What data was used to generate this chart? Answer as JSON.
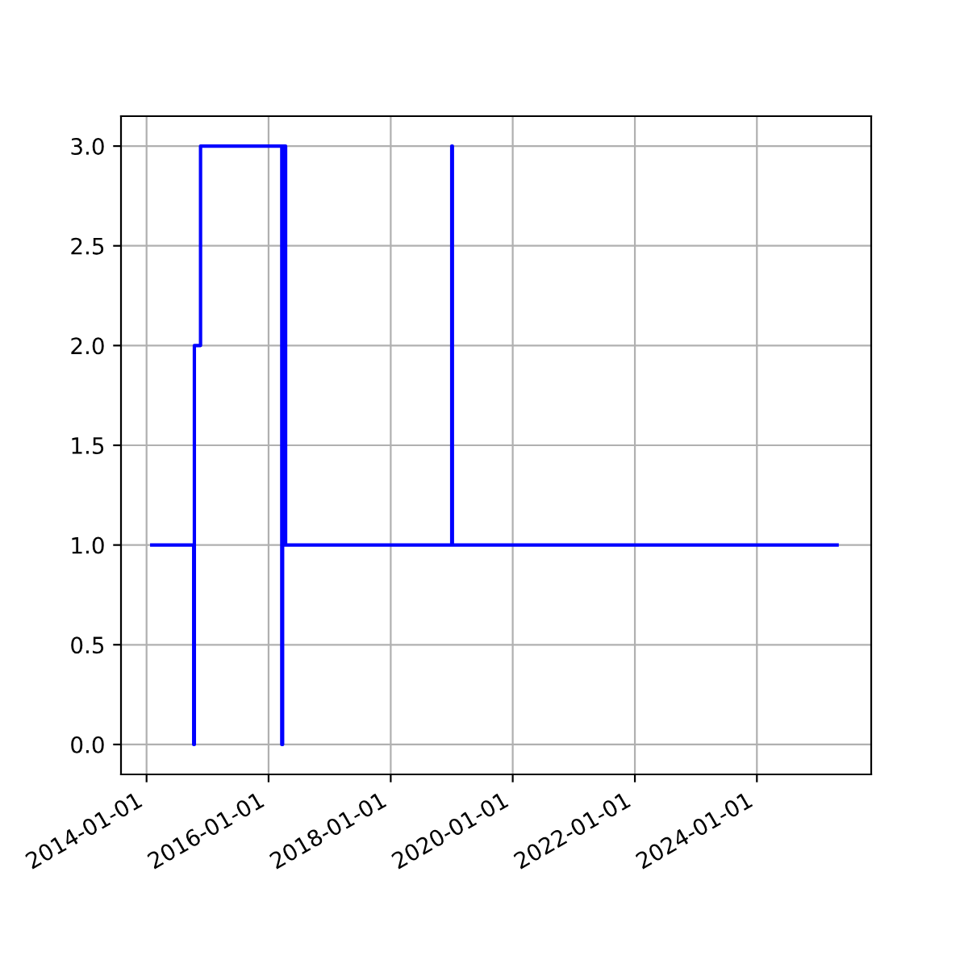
{
  "chart_data": {
    "type": "step",
    "grid": true,
    "legend": false,
    "x": [
      "2014-02-01",
      "2014-10-10",
      "2014-10-14",
      "2014-11-20",
      "2016-03-20",
      "2016-03-25",
      "2016-04-05",
      "2016-04-08",
      "2016-04-12",
      "2019-01-01",
      "2019-01-05",
      "2025-04-25"
    ],
    "series": [
      {
        "color": "#0000ff",
        "values": [
          1,
          0,
          2,
          3,
          0,
          3,
          1,
          3,
          1,
          3,
          1,
          1
        ]
      }
    ],
    "xlim": [
      "2013-08-01",
      "2025-11-15"
    ],
    "xticks": [
      "2014-01-01",
      "2016-01-01",
      "2018-01-01",
      "2020-01-01",
      "2022-01-01",
      "2024-01-01"
    ],
    "ylim": [
      -0.15,
      3.15
    ],
    "yticks": [
      {
        "value": 0,
        "label": "0.0"
      },
      {
        "value": 0.5,
        "label": "0.5"
      },
      {
        "value": 1,
        "label": "1.0"
      },
      {
        "value": 1.5,
        "label": "1.5"
      },
      {
        "value": 2,
        "label": "2.0"
      },
      {
        "value": 2.5,
        "label": "2.5"
      },
      {
        "value": 3,
        "label": "3.0"
      }
    ]
  }
}
